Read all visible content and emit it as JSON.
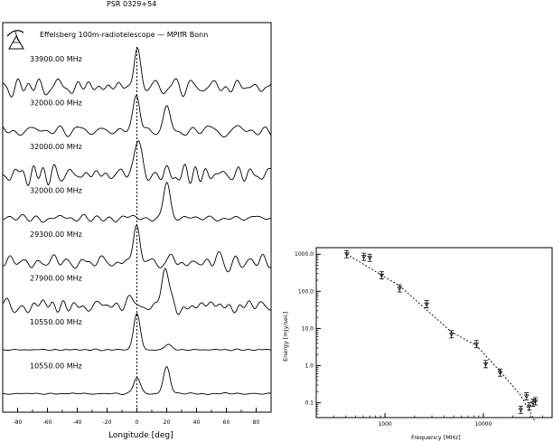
{
  "chart_data": [
    {
      "type": "line",
      "title": "PSR   0329+54",
      "subtitle": "Effelsberg 100m-radiotelescope   —   MPIfR Bonn",
      "xlabel": "Longitude [deg]",
      "ylabel": "",
      "xlim": [
        -90,
        90
      ],
      "x_ticks": [
        -80,
        -60,
        -40,
        -20,
        0,
        20,
        40,
        60,
        80
      ],
      "x_tick_labels": [
        "-80",
        "-60",
        "-40",
        "-20",
        "0",
        "20",
        "40",
        "60",
        "80"
      ],
      "reference_line_x": 0,
      "series": [
        {
          "name": "33900.00 MHz",
          "peaks": [
            [
              0,
              1.0
            ]
          ],
          "noise": 0.25
        },
        {
          "name": "32000.00 MHz",
          "peaks": [
            [
              0,
              1.0
            ],
            [
              20,
              0.55
            ]
          ],
          "noise": 0.22
        },
        {
          "name": "32000.00 MHz",
          "peaks": [
            [
              0,
              1.0
            ]
          ],
          "noise": 0.3
        },
        {
          "name": "32000.00 MHz",
          "peaks": [
            [
              20,
              1.0
            ]
          ],
          "noise": 0.12
        },
        {
          "name": "29300.00 MHz",
          "peaks": [
            [
              0,
              1.0
            ]
          ],
          "noise": 0.2
        },
        {
          "name": "27900.00 MHz",
          "peaks": [
            [
              -4,
              0.25
            ],
            [
              19,
              1.0
            ]
          ],
          "noise": 0.18
        },
        {
          "name": "10550.00 MHz",
          "peaks": [
            [
              0,
              1.0
            ],
            [
              21,
              0.15
            ]
          ],
          "noise": 0.02
        },
        {
          "name": "10550.00 MHz",
          "peaks": [
            [
              0,
              0.45
            ],
            [
              20,
              0.75
            ]
          ],
          "noise": 0.02
        }
      ]
    },
    {
      "type": "scatter",
      "title": "",
      "xlabel": "Frequency [MHz]",
      "ylabel": "Energy [mJy/sec]",
      "x_scale": "log",
      "y_scale": "log",
      "xlim": [
        200,
        50000
      ],
      "ylim": [
        0.04,
        1500
      ],
      "x_ticks": [
        1000,
        10000
      ],
      "x_tick_labels": [
        "1000",
        "10000"
      ],
      "y_ticks": [
        0.1,
        1,
        10,
        100,
        1000
      ],
      "y_tick_labels": [
        "0.1",
        "1.0",
        "10.0",
        "100.0",
        "1000.0"
      ],
      "points": [
        {
          "x": 408,
          "y": 1000
        },
        {
          "x": 610,
          "y": 850
        },
        {
          "x": 700,
          "y": 800
        },
        {
          "x": 925,
          "y": 270
        },
        {
          "x": 1408,
          "y": 120
        },
        {
          "x": 2650,
          "y": 45
        },
        {
          "x": 4750,
          "y": 7.0
        },
        {
          "x": 8500,
          "y": 3.8
        },
        {
          "x": 10550,
          "y": 1.1
        },
        {
          "x": 14800,
          "y": 0.65
        },
        {
          "x": 24000,
          "y": 0.065
        },
        {
          "x": 27500,
          "y": 0.15
        },
        {
          "x": 29300,
          "y": 0.08
        },
        {
          "x": 32000,
          "y": 0.1
        },
        {
          "x": 33900,
          "y": 0.11
        }
      ],
      "fit_line": {
        "style": "dashed",
        "x": [
          408,
          1408,
          4750,
          8500,
          14800,
          24000,
          33900
        ],
        "y": [
          1000,
          140,
          8.0,
          3.5,
          0.7,
          0.16,
          0.03
        ]
      }
    }
  ]
}
